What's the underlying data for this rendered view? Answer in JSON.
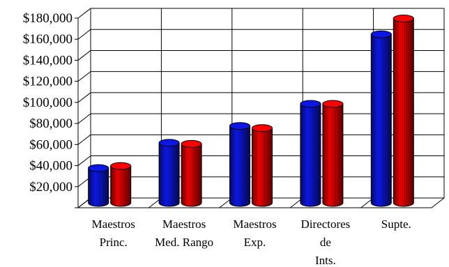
{
  "chart_data": {
    "type": "bar",
    "style": "3d-cylinder",
    "categories": [
      [
        "Maestros",
        "Princ."
      ],
      [
        "Maestros",
        "Med. Rango"
      ],
      [
        "Maestros",
        "Exp."
      ],
      [
        "Directores",
        "de",
        "Ints."
      ],
      [
        "Supte."
      ]
    ],
    "series": [
      {
        "color": "#0a14c8",
        "values": [
          33000,
          57000,
          73000,
          94000,
          160000
        ]
      },
      {
        "color": "#e00000",
        "values": [
          35000,
          56000,
          71000,
          94000,
          175000
        ]
      }
    ],
    "yticks": [
      "$20,000",
      "$40,000",
      "$60,000",
      "$80,000",
      "$100,000",
      "$120,000",
      "$140,000",
      "$160,000",
      "$180,000"
    ],
    "ylim": [
      0,
      180000
    ],
    "grid": true,
    "legend": "none"
  }
}
